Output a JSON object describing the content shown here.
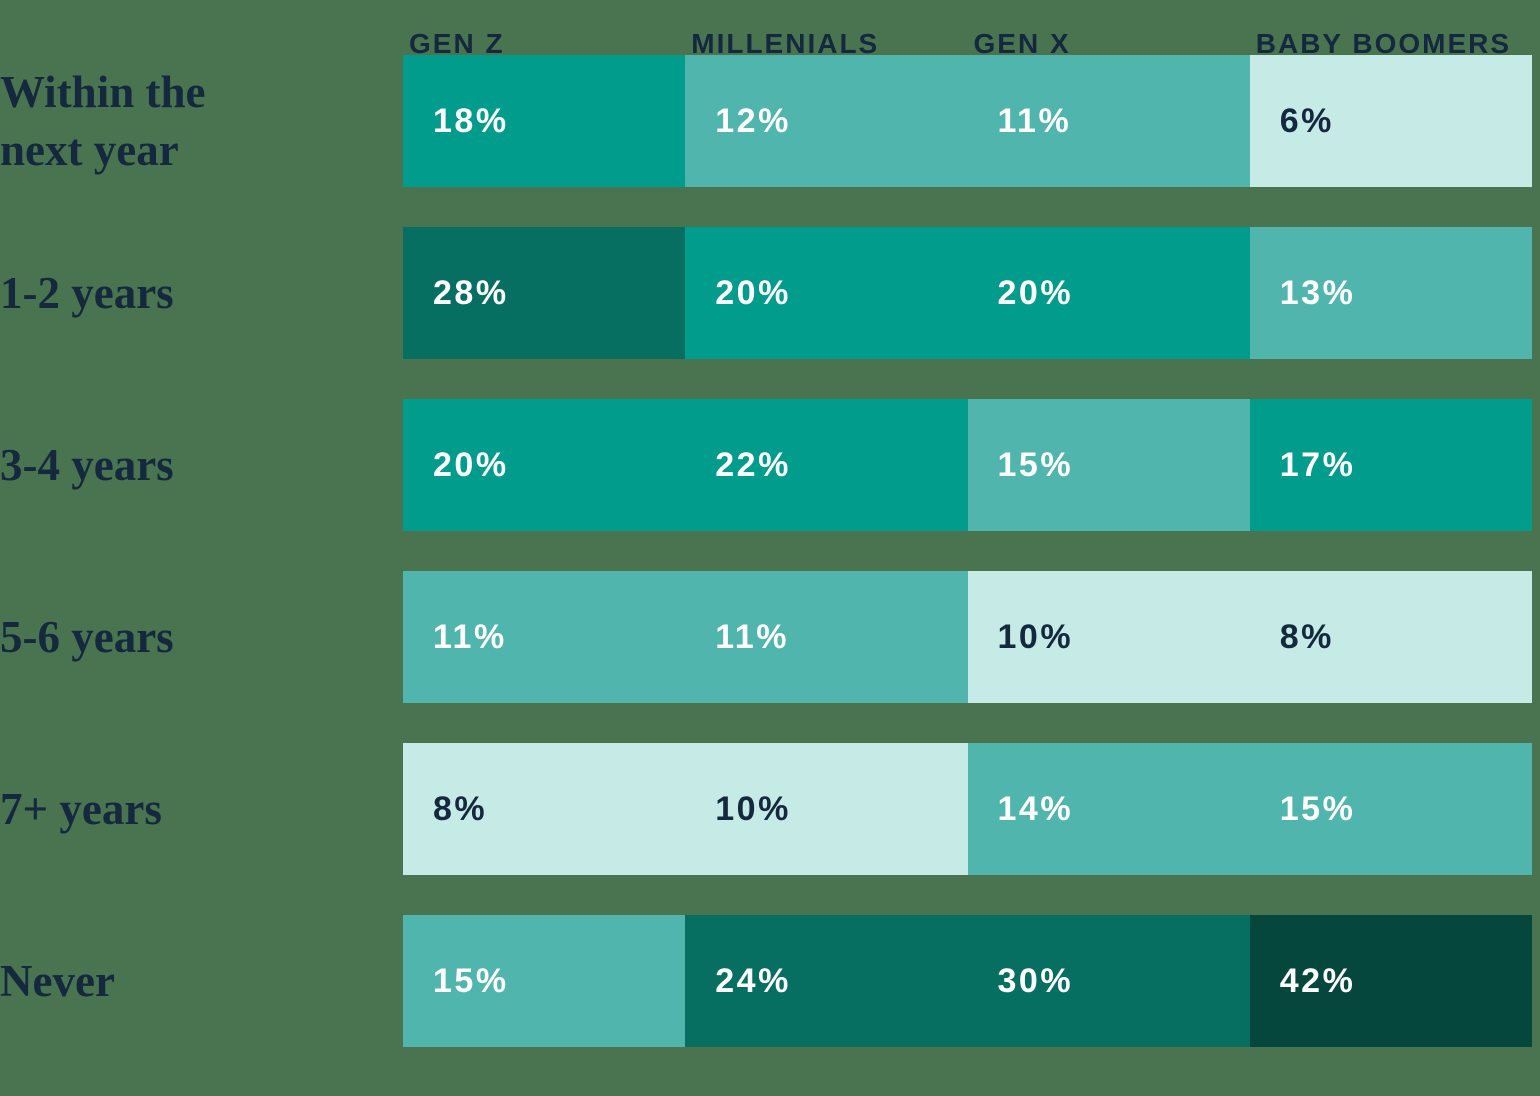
{
  "chart_data": {
    "type": "heatmap",
    "title": "",
    "unit": "%",
    "legend": "none",
    "grid": "off",
    "columns": [
      "GEN Z",
      "MILLENIALS",
      "GEN X",
      "BABY BOOMERS"
    ],
    "rows": [
      {
        "label": "Within the next year",
        "values": [
          18,
          12,
          11,
          6
        ],
        "cells": [
          {
            "label": "18%",
            "value": 18,
            "level": "medium"
          },
          {
            "label": "12%",
            "value": 12,
            "level": "light"
          },
          {
            "label": "11%",
            "value": 11,
            "level": "light"
          },
          {
            "label": "6%",
            "value": 6,
            "level": "lightest"
          }
        ]
      },
      {
        "label": "1-2 years",
        "values": [
          28,
          20,
          20,
          13
        ],
        "cells": [
          {
            "label": "28%",
            "value": 28,
            "level": "dark"
          },
          {
            "label": "20%",
            "value": 20,
            "level": "medium"
          },
          {
            "label": "20%",
            "value": 20,
            "level": "medium"
          },
          {
            "label": "13%",
            "value": 13,
            "level": "light"
          }
        ]
      },
      {
        "label": "3-4 years",
        "values": [
          20,
          22,
          15,
          17
        ],
        "cells": [
          {
            "label": "20%",
            "value": 20,
            "level": "medium"
          },
          {
            "label": "22%",
            "value": 22,
            "level": "medium"
          },
          {
            "label": "15%",
            "value": 15,
            "level": "light"
          },
          {
            "label": "17%",
            "value": 17,
            "level": "medium"
          }
        ]
      },
      {
        "label": "5-6 years",
        "values": [
          11,
          11,
          10,
          8
        ],
        "cells": [
          {
            "label": "11%",
            "value": 11,
            "level": "light"
          },
          {
            "label": "11%",
            "value": 11,
            "level": "light"
          },
          {
            "label": "10%",
            "value": 10,
            "level": "lightest"
          },
          {
            "label": "8%",
            "value": 8,
            "level": "lightest"
          }
        ]
      },
      {
        "label": "7+ years",
        "values": [
          8,
          10,
          14,
          15
        ],
        "cells": [
          {
            "label": "8%",
            "value": 8,
            "level": "lightest"
          },
          {
            "label": "10%",
            "value": 10,
            "level": "lightest"
          },
          {
            "label": "14%",
            "value": 14,
            "level": "light"
          },
          {
            "label": "15%",
            "value": 15,
            "level": "light"
          }
        ]
      },
      {
        "label": "Never",
        "values": [
          15,
          24,
          30,
          42
        ],
        "cells": [
          {
            "label": "15%",
            "value": 15,
            "level": "light"
          },
          {
            "label": "24%",
            "value": 24,
            "level": "dark"
          },
          {
            "label": "30%",
            "value": 30,
            "level": "dark"
          },
          {
            "label": "42%",
            "value": 42,
            "level": "darkest"
          }
        ]
      }
    ],
    "palette": {
      "background": "#4A7350",
      "darkest": "#05473D",
      "dark": "#066F61",
      "medium": "#019C8C",
      "light": "#4FB5AD",
      "lightest": "#C6EAE5",
      "text_dark": "#14293E",
      "text_light": "#FFFFFF"
    }
  }
}
